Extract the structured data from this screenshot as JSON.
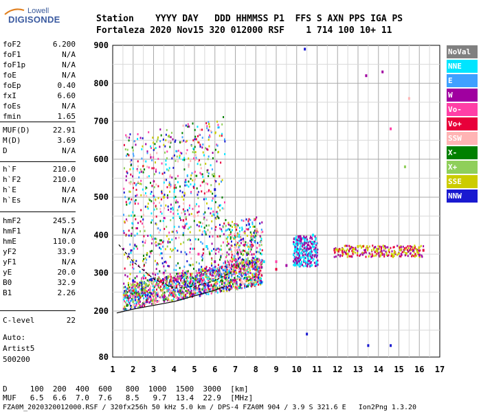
{
  "logo": {
    "top": "Lowell",
    "bottom": "DIGISONDE"
  },
  "header": {
    "row1": "Station    YYYY DAY   DDD HHMMSS P1  FFS S AXN PPS IGA PS",
    "row2": "Fortaleza 2020 Nov15 320 012000 RSF    1 714 100 10+ 11"
  },
  "params": [
    {
      "k": "foF2",
      "v": "6.200"
    },
    {
      "k": "foF1",
      "v": "N/A"
    },
    {
      "k": "foF1p",
      "v": "N/A"
    },
    {
      "k": "foE",
      "v": "N/A"
    },
    {
      "k": "foEp",
      "v": "0.40"
    },
    {
      "k": "fxI",
      "v": "6.60"
    },
    {
      "k": "foEs",
      "v": "N/A"
    },
    {
      "k": "fmin",
      "v": "1.65"
    },
    {
      "k": "MUF(D)",
      "v": "22.91"
    },
    {
      "k": "M(D)",
      "v": "3.69"
    },
    {
      "k": "D",
      "v": "N/A"
    },
    {
      "k": "h`F",
      "v": "210.0"
    },
    {
      "k": "h`F2",
      "v": "210.0"
    },
    {
      "k": "h`E",
      "v": "N/A"
    },
    {
      "k": "h`Es",
      "v": "N/A"
    },
    {
      "k": "hmF2",
      "v": "245.5"
    },
    {
      "k": "hmF1",
      "v": "N/A"
    },
    {
      "k": "hmE",
      "v": "110.0"
    },
    {
      "k": "yF2",
      "v": "33.9"
    },
    {
      "k": "yF1",
      "v": "N/A"
    },
    {
      "k": "yE",
      "v": "20.0"
    },
    {
      "k": "B0",
      "v": "32.9"
    },
    {
      "k": "B1",
      "v": "2.26"
    },
    {
      "k": "C-level",
      "v": "22"
    }
  ],
  "auto": {
    "l1": "Auto:",
    "l2": "Artist5",
    "l3": "500200"
  },
  "legend": [
    {
      "label": "NoVal",
      "bg": "#808080",
      "fg": "#ffffff"
    },
    {
      "label": "NNE",
      "bg": "#00e5ff",
      "fg": "#ffffff"
    },
    {
      "label": "E",
      "bg": "#3fa0ff",
      "fg": "#ffffff"
    },
    {
      "label": "W",
      "bg": "#a000a0",
      "fg": "#ffffff"
    },
    {
      "label": "Vo-",
      "bg": "#ff3fa6",
      "fg": "#ffffff"
    },
    {
      "label": "Vo+",
      "bg": "#e8003a",
      "fg": "#ffffff"
    },
    {
      "label": "SSW",
      "bg": "#ffb4b4",
      "fg": "#ffffff"
    },
    {
      "label": "X-",
      "bg": "#008000",
      "fg": "#ffffff"
    },
    {
      "label": "X+",
      "bg": "#8fcf5a",
      "fg": "#ffffff"
    },
    {
      "label": "SSE",
      "bg": "#cccc00",
      "fg": "#ffffff"
    },
    {
      "label": "NNW",
      "bg": "#1a1ad0",
      "fg": "#ffffff"
    }
  ],
  "bottom": {
    "d_row": "D     100  200  400  600   800  1000  1500  3000  [km]",
    "muf_row": "MUF   6.5  6.6  7.0  7.6   8.5   9.7  13.4  22.9  [MHz]",
    "footer": "FZA0M_2020320012000.RSF / 320fx256h 50 kHz 5.0 km / DPS-4 FZA0M 904 / 3.9 S 321.6 E   Ion2Png 1.3.20"
  },
  "chart_data": {
    "type": "scatter",
    "title": "",
    "xlabel": "",
    "ylabel": "",
    "xlim": [
      1,
      17
    ],
    "ylim": [
      80,
      900
    ],
    "x_ticks": [
      "1",
      "2",
      "3",
      "4",
      "5",
      "6",
      "7",
      "8",
      "9",
      "10",
      "11",
      "12",
      "13",
      "14",
      "15",
      "16",
      "17"
    ],
    "y_ticks": [
      "80",
      "200",
      "300",
      "400",
      "500",
      "600",
      "700",
      "800",
      "900"
    ],
    "y_tick_values": [
      80,
      200,
      300,
      400,
      500,
      600,
      700,
      800,
      900
    ],
    "grid": true,
    "series": [
      {
        "name": "NNE",
        "color": "#00e5ff",
        "points": [
          [
            10.4,
            380
          ],
          [
            10.6,
            350
          ],
          [
            10.8,
            400
          ],
          [
            5.6,
            370
          ],
          [
            8.4,
            330
          ],
          [
            10.2,
            340
          ]
        ]
      },
      {
        "name": "E",
        "color": "#3fa0ff",
        "points": [
          [
            2.5,
            250
          ],
          [
            3,
            255
          ],
          [
            3.5,
            260
          ],
          [
            4,
            265
          ],
          [
            4.5,
            270
          ],
          [
            5,
            275
          ],
          [
            5.5,
            260
          ],
          [
            6,
            265
          ],
          [
            10.5,
            360
          ]
        ]
      },
      {
        "name": "W",
        "color": "#a000a0",
        "points": [
          [
            2.2,
            240
          ],
          [
            3.5,
            300
          ],
          [
            4.5,
            420
          ],
          [
            6,
            330
          ],
          [
            8,
            310
          ],
          [
            9.5,
            320
          ],
          [
            13.4,
            820
          ],
          [
            14.2,
            830
          ]
        ]
      },
      {
        "name": "Vo-",
        "color": "#ff3fa6",
        "points": [
          [
            2.1,
            235
          ],
          [
            3.2,
            245
          ],
          [
            4.3,
            290
          ],
          [
            5.2,
            350
          ],
          [
            7,
            300
          ],
          [
            9,
            330
          ],
          [
            14.6,
            680
          ]
        ]
      },
      {
        "name": "Vo+",
        "color": "#e8003a",
        "points": [
          [
            2.3,
            230
          ],
          [
            3,
            240
          ],
          [
            4,
            250
          ],
          [
            5,
            260
          ],
          [
            6,
            270
          ],
          [
            7,
            280
          ],
          [
            8,
            290
          ],
          [
            9,
            310
          ],
          [
            10.3,
            360
          ],
          [
            16.2,
            360
          ]
        ]
      },
      {
        "name": "SSW",
        "color": "#ffb4b4",
        "points": [
          [
            3,
            300
          ],
          [
            5,
            450
          ],
          [
            7,
            360
          ],
          [
            15.5,
            760
          ]
        ]
      },
      {
        "name": "X-",
        "color": "#008000",
        "points": [
          [
            1.7,
            215
          ],
          [
            2.5,
            220
          ],
          [
            3.5,
            230
          ],
          [
            4.5,
            240
          ]
        ]
      },
      {
        "name": "X+",
        "color": "#8fcf5a",
        "points": [
          [
            2,
            225
          ],
          [
            3,
            230
          ],
          [
            15.3,
            580
          ]
        ]
      },
      {
        "name": "SSE",
        "color": "#cccc00",
        "points": [
          [
            12,
            360
          ],
          [
            12.5,
            350
          ],
          [
            13,
            370
          ],
          [
            3.5,
            500
          ]
        ]
      },
      {
        "name": "NNW",
        "color": "#1a1ad0",
        "points": [
          [
            2,
            280
          ],
          [
            6,
            520
          ],
          [
            10.4,
            890
          ],
          [
            13.5,
            110
          ],
          [
            14.6,
            110
          ],
          [
            10.5,
            140
          ]
        ]
      }
    ],
    "curves": [
      {
        "name": "profile",
        "color": "#000000",
        "points": [
          [
            1.2,
            195
          ],
          [
            2,
            205
          ],
          [
            3,
            215
          ],
          [
            4,
            225
          ],
          [
            5,
            240
          ],
          [
            6,
            255
          ],
          [
            6.5,
            265
          ]
        ]
      },
      {
        "name": "trace",
        "color": "#000000",
        "points": [
          [
            1.3,
            375
          ],
          [
            2,
            330
          ],
          [
            3,
            285
          ],
          [
            4,
            260
          ],
          [
            5,
            265
          ],
          [
            6,
            280
          ],
          [
            6.7,
            300
          ]
        ]
      }
    ]
  }
}
